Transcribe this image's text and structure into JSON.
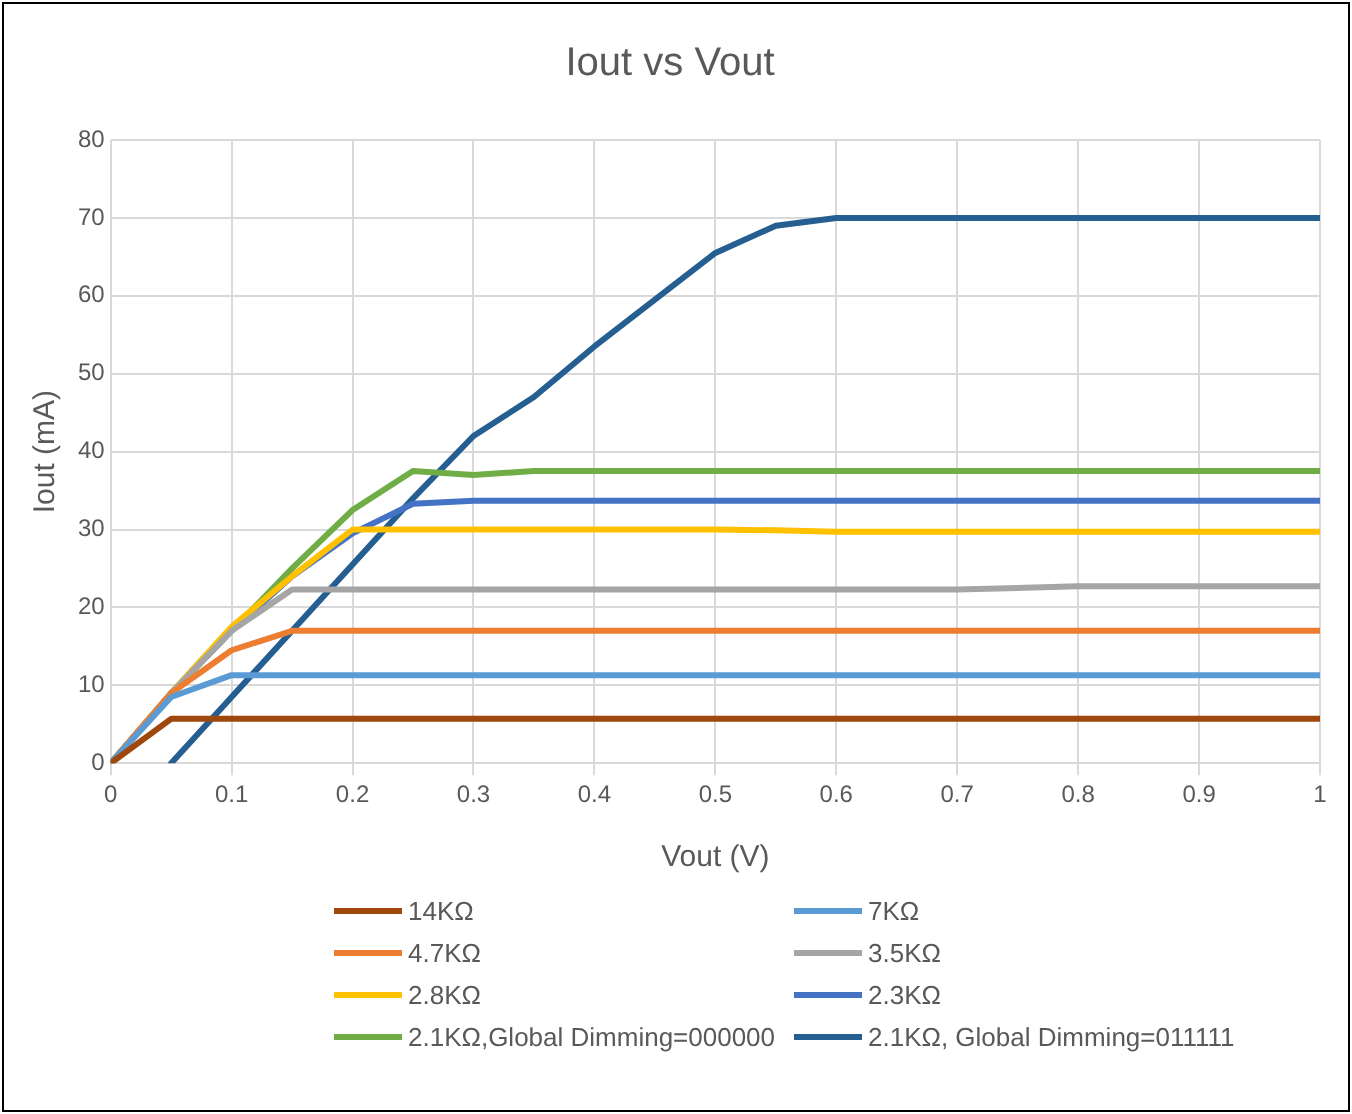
{
  "chart_data": {
    "type": "line",
    "title": "Iout vs Vout",
    "xlabel": "Vout (V)",
    "ylabel": "Iout (mA)",
    "x": [
      0,
      0.05,
      0.1,
      0.15,
      0.2,
      0.25,
      0.3,
      0.35,
      0.4,
      0.45,
      0.5,
      0.55,
      0.6,
      0.7,
      0.8,
      0.9,
      1
    ],
    "series": [
      {
        "name": "14KΩ",
        "color": "#9e480e",
        "values": [
          0,
          5.7,
          5.7,
          5.7,
          5.7,
          5.7,
          5.7,
          5.7,
          5.7,
          5.7,
          5.7,
          5.7,
          5.7,
          5.7,
          5.7,
          5.7,
          5.7
        ]
      },
      {
        "name": "7KΩ",
        "color": "#5b9bd5",
        "values": [
          0,
          8.5,
          11.3,
          11.3,
          11.3,
          11.3,
          11.3,
          11.3,
          11.3,
          11.3,
          11.3,
          11.3,
          11.3,
          11.3,
          11.3,
          11.3,
          11.3
        ]
      },
      {
        "name": "4.7KΩ",
        "color": "#ed7d31",
        "values": [
          0,
          9,
          14.5,
          17,
          17,
          17,
          17,
          17,
          17,
          17,
          17,
          17,
          17,
          17,
          17,
          17,
          17
        ]
      },
      {
        "name": "3.5KΩ",
        "color": "#a5a5a5",
        "values": [
          0,
          9,
          17,
          22.3,
          22.3,
          22.3,
          22.3,
          22.3,
          22.3,
          22.3,
          22.3,
          22.3,
          22.3,
          22.3,
          22.7,
          22.7,
          22.7
        ]
      },
      {
        "name": "2.8KΩ",
        "color": "#ffc000",
        "values": [
          0,
          9,
          17.5,
          24,
          30,
          30,
          30,
          30,
          30,
          30,
          30,
          29.9,
          29.7,
          29.7,
          29.7,
          29.7,
          29.7
        ]
      },
      {
        "name": "2.3KΩ",
        "color": "#4472c4",
        "values": [
          0,
          9,
          17,
          24,
          29.5,
          33.3,
          33.7,
          33.7,
          33.7,
          33.7,
          33.7,
          33.7,
          33.7,
          33.7,
          33.7,
          33.7,
          33.7
        ]
      },
      {
        "name": "2.1KΩ,Global Dimming=000000",
        "color": "#70ad47",
        "values": [
          0,
          9,
          17,
          25,
          32.5,
          37.5,
          37,
          37.5,
          37.5,
          37.5,
          37.5,
          37.5,
          37.5,
          37.5,
          37.5,
          37.5,
          37.5
        ]
      },
      {
        "name": "2.1KΩ, Global Dimming=011111",
        "color": "#255e91",
        "values": [
          null,
          0,
          8.5,
          17,
          25.5,
          34,
          42,
          47,
          53.5,
          59.5,
          65.5,
          69,
          70,
          70,
          70,
          70,
          70
        ]
      }
    ],
    "xlim": [
      0,
      1
    ],
    "xticks": [
      0,
      0.1,
      0.2,
      0.3,
      0.4,
      0.5,
      0.6,
      0.7,
      0.8,
      0.9,
      1
    ],
    "ylim": [
      0,
      80
    ],
    "yticks": [
      0,
      10,
      20,
      30,
      40,
      50,
      60,
      70,
      80
    ],
    "grid": true,
    "legend": "bottom",
    "marker": "none",
    "line_style": "solid"
  }
}
